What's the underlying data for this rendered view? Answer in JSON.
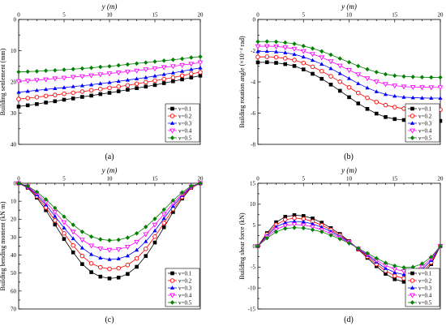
{
  "colors": {
    "v01": "#000000",
    "v02": "#ff0000",
    "v03": "#0000ff",
    "v04": "#ff00ff",
    "v05": "#008000"
  },
  "legend_labels": [
    "v=0.1",
    "v=0.2",
    "v=0.3",
    "v=0.4",
    "v=0.5"
  ],
  "markers": [
    "filled-square",
    "open-circle",
    "filled-triangle-up",
    "open-triangle-down",
    "filled-diamond"
  ],
  "chart_data": [
    {
      "id": "a",
      "panel_label": "(a)",
      "type": "line",
      "xlabel": "y (m)",
      "ylabel": "Building settlement (mm)",
      "xlim": [
        0,
        20
      ],
      "ylim": [
        0,
        40
      ],
      "y_reversed": true,
      "xticks": [
        0,
        5,
        10,
        15,
        20
      ],
      "yticks": [
        0,
        10,
        20,
        30,
        40
      ],
      "xtick_labels": [
        "0",
        "5",
        "10",
        "15",
        "20"
      ],
      "ytick_labels": [
        "0",
        "10",
        "20",
        "30",
        "40"
      ],
      "x": [
        0,
        1,
        2,
        3,
        4,
        5,
        6,
        7,
        8,
        9,
        10,
        11,
        12,
        13,
        14,
        15,
        16,
        17,
        18,
        19,
        20
      ],
      "series": [
        {
          "name": "v=0.1",
          "values": [
            27.9,
            27.5,
            27.1,
            26.6,
            26.2,
            25.7,
            25.3,
            24.8,
            24.4,
            23.9,
            23.5,
            23.0,
            22.5,
            22.0,
            21.5,
            21.0,
            20.4,
            19.8,
            19.2,
            18.6,
            18.0
          ]
        },
        {
          "name": "v=0.2",
          "values": [
            25.5,
            25.2,
            24.9,
            24.5,
            24.2,
            23.8,
            23.5,
            23.1,
            22.7,
            22.3,
            21.9,
            21.5,
            21.1,
            20.6,
            20.1,
            19.6,
            19.1,
            18.6,
            18.0,
            17.4,
            16.9
          ]
        },
        {
          "name": "v=0.3",
          "values": [
            23.3,
            23.0,
            22.7,
            22.4,
            22.1,
            21.8,
            21.5,
            21.2,
            20.9,
            20.5,
            20.2,
            19.8,
            19.4,
            19.0,
            18.6,
            18.1,
            17.6,
            17.1,
            16.6,
            16.0,
            15.5
          ]
        },
        {
          "name": "v=0.4",
          "values": [
            19.8,
            19.6,
            19.4,
            19.2,
            18.9,
            18.7,
            18.4,
            18.2,
            17.9,
            17.6,
            17.3,
            17.0,
            16.7,
            16.4,
            16.0,
            15.7,
            15.3,
            15.0,
            14.6,
            14.2,
            13.8
          ]
        },
        {
          "name": "v=0.5",
          "values": [
            16.8,
            16.7,
            16.6,
            16.4,
            16.3,
            16.1,
            15.9,
            15.7,
            15.5,
            15.2,
            15.0,
            14.7,
            14.4,
            14.1,
            13.8,
            13.5,
            13.2,
            12.9,
            12.6,
            12.2,
            11.9
          ]
        }
      ]
    },
    {
      "id": "b",
      "panel_label": "(b)",
      "type": "line",
      "xlabel": "y (m)",
      "ylabel": "Building rotation angle (×10⁻⁴ rad)",
      "xlim": [
        0,
        20
      ],
      "ylim": [
        -8,
        0
      ],
      "y_reversed": false,
      "xticks": [
        0,
        5,
        10,
        15,
        20
      ],
      "yticks": [
        0,
        -2,
        -4,
        -6,
        -8
      ],
      "xtick_labels": [
        "0",
        "5",
        "10",
        "15",
        "20"
      ],
      "ytick_labels": [
        "0",
        "-2",
        "-4",
        "-6",
        "-8"
      ],
      "x": [
        0,
        1,
        2,
        3,
        4,
        5,
        6,
        7,
        8,
        9,
        10,
        11,
        12,
        13,
        14,
        15,
        16,
        17,
        18,
        19,
        20
      ],
      "series": [
        {
          "name": "v=0.1",
          "values": [
            -2.75,
            -2.74,
            -2.78,
            -2.86,
            -2.98,
            -3.2,
            -3.48,
            -3.8,
            -4.17,
            -4.57,
            -4.98,
            -5.38,
            -5.73,
            -6.03,
            -6.25,
            -6.38,
            -6.44,
            -6.48,
            -6.49,
            -6.5,
            -6.5
          ]
        },
        {
          "name": "v=0.2",
          "values": [
            -2.4,
            -2.39,
            -2.42,
            -2.49,
            -2.6,
            -2.79,
            -3.03,
            -3.31,
            -3.64,
            -3.99,
            -4.35,
            -4.71,
            -5.02,
            -5.29,
            -5.49,
            -5.62,
            -5.71,
            -5.75,
            -5.77,
            -5.78,
            -5.78
          ]
        },
        {
          "name": "v=0.3",
          "values": [
            -2.05,
            -2.04,
            -2.07,
            -2.13,
            -2.23,
            -2.4,
            -2.61,
            -2.86,
            -3.14,
            -3.46,
            -3.78,
            -4.1,
            -4.38,
            -4.62,
            -4.8,
            -4.91,
            -4.98,
            -5.01,
            -5.03,
            -5.04,
            -5.04
          ]
        },
        {
          "name": "v=0.4",
          "values": [
            -1.72,
            -1.71,
            -1.73,
            -1.79,
            -1.88,
            -2.03,
            -2.22,
            -2.43,
            -2.68,
            -2.96,
            -3.24,
            -3.52,
            -3.77,
            -3.98,
            -4.14,
            -4.24,
            -4.3,
            -4.33,
            -4.34,
            -4.35,
            -4.35
          ]
        },
        {
          "name": "v=0.5",
          "values": [
            -1.42,
            -1.41,
            -1.43,
            -1.48,
            -1.56,
            -1.7,
            -1.86,
            -2.04,
            -2.26,
            -2.5,
            -2.74,
            -2.98,
            -3.19,
            -3.37,
            -3.51,
            -3.6,
            -3.65,
            -3.68,
            -3.7,
            -3.71,
            -3.71
          ]
        }
      ]
    },
    {
      "id": "c",
      "panel_label": "(c)",
      "type": "line",
      "xlabel": "y (m)",
      "ylabel": "Building bending moment (kN·m)",
      "xlim": [
        0,
        20
      ],
      "ylim": [
        0,
        70
      ],
      "y_reversed": true,
      "xticks": [
        0,
        5,
        10,
        15,
        20
      ],
      "yticks": [
        0,
        10,
        20,
        30,
        40,
        50,
        60,
        70
      ],
      "xtick_labels": [
        "0",
        "5",
        "10",
        "15",
        "20"
      ],
      "ytick_labels": [
        "0",
        "10",
        "20",
        "30",
        "40",
        "50",
        "60",
        "70"
      ],
      "x": [
        0,
        1,
        2,
        3,
        4,
        5,
        6,
        7,
        8,
        9,
        10,
        11,
        12,
        13,
        14,
        15,
        16,
        17,
        18,
        19,
        20
      ],
      "series": [
        {
          "name": "v=0.1",
          "values": [
            0,
            2.5,
            8.0,
            15.0,
            23.0,
            31.0,
            38.5,
            45.0,
            49.5,
            52.0,
            53.0,
            52.5,
            50.5,
            46.5,
            40.5,
            33.0,
            24.5,
            16.0,
            8.5,
            2.5,
            0
          ]
        },
        {
          "name": "v=0.2",
          "values": [
            0,
            2.2,
            7.2,
            13.5,
            20.7,
            27.9,
            34.6,
            40.5,
            44.6,
            46.8,
            47.7,
            47.3,
            45.5,
            41.9,
            36.5,
            29.7,
            22.1,
            14.4,
            7.7,
            2.3,
            0
          ]
        },
        {
          "name": "v=0.3",
          "values": [
            0,
            2.0,
            6.4,
            12.0,
            18.4,
            24.8,
            30.8,
            36.0,
            39.6,
            41.6,
            42.4,
            42.0,
            40.4,
            37.2,
            32.4,
            26.4,
            19.6,
            12.8,
            6.8,
            2.0,
            0
          ]
        },
        {
          "name": "v=0.4",
          "values": [
            0,
            1.7,
            5.6,
            10.5,
            16.1,
            21.7,
            27.0,
            31.5,
            34.7,
            36.4,
            37.1,
            36.8,
            35.4,
            32.6,
            28.4,
            23.1,
            17.2,
            11.2,
            6.0,
            1.8,
            0
          ]
        },
        {
          "name": "v=0.5",
          "values": [
            0,
            1.5,
            4.8,
            9.0,
            13.8,
            18.6,
            23.1,
            27.0,
            29.7,
            31.2,
            31.8,
            31.5,
            30.3,
            27.9,
            24.3,
            19.8,
            14.7,
            9.6,
            5.1,
            1.5,
            0
          ]
        }
      ]
    },
    {
      "id": "d",
      "panel_label": "(d)",
      "type": "line",
      "xlabel": "y (m)",
      "ylabel": "Building shear force (kN)",
      "xlim": [
        0,
        20
      ],
      "ylim": [
        -15,
        15
      ],
      "y_reversed": false,
      "xticks": [
        0,
        5,
        10,
        15,
        20
      ],
      "yticks": [
        15,
        10,
        5,
        0,
        -5,
        -10,
        -15
      ],
      "xtick_labels": [
        "0",
        "5",
        "10",
        "15",
        "20"
      ],
      "ytick_labels": [
        "15",
        "10",
        "5",
        "0",
        "-5",
        "-10",
        "-15"
      ],
      "x": [
        0,
        1,
        2,
        3,
        4,
        5,
        6,
        7,
        8,
        9,
        10,
        11,
        12,
        13,
        14,
        15,
        16,
        17,
        18,
        19,
        20
      ],
      "series": [
        {
          "name": "v=0.1",
          "values": [
            0,
            3.1,
            5.7,
            7.0,
            7.4,
            7.2,
            6.6,
            5.6,
            4.3,
            2.9,
            1.2,
            -0.8,
            -2.8,
            -4.8,
            -6.6,
            -7.9,
            -8.5,
            -8.3,
            -7.0,
            -4.3,
            0
          ]
        },
        {
          "name": "v=0.2",
          "values": [
            0,
            2.8,
            5.1,
            6.3,
            6.7,
            6.5,
            5.9,
            5.0,
            3.9,
            2.6,
            1.1,
            -0.7,
            -2.5,
            -4.3,
            -5.9,
            -7.1,
            -7.7,
            -7.5,
            -6.3,
            -3.9,
            0
          ]
        },
        {
          "name": "v=0.3",
          "values": [
            0,
            2.5,
            4.6,
            5.6,
            5.9,
            5.8,
            5.3,
            4.5,
            3.5,
            2.3,
            1.0,
            -0.6,
            -2.2,
            -3.8,
            -5.3,
            -6.3,
            -6.8,
            -6.6,
            -5.6,
            -3.4,
            0
          ]
        },
        {
          "name": "v=0.4",
          "values": [
            0,
            2.2,
            4.0,
            4.9,
            5.2,
            5.0,
            4.6,
            3.9,
            3.0,
            2.0,
            0.8,
            -0.6,
            -2.0,
            -3.4,
            -4.6,
            -5.5,
            -6.0,
            -5.8,
            -4.9,
            -3.0,
            0
          ]
        },
        {
          "name": "v=0.5",
          "values": [
            0,
            1.9,
            3.4,
            4.2,
            4.4,
            4.3,
            3.9,
            3.4,
            2.6,
            1.7,
            0.7,
            -0.5,
            -1.7,
            -2.9,
            -4.0,
            -4.7,
            -5.1,
            -5.0,
            -4.2,
            -2.6,
            0
          ]
        }
      ]
    }
  ]
}
